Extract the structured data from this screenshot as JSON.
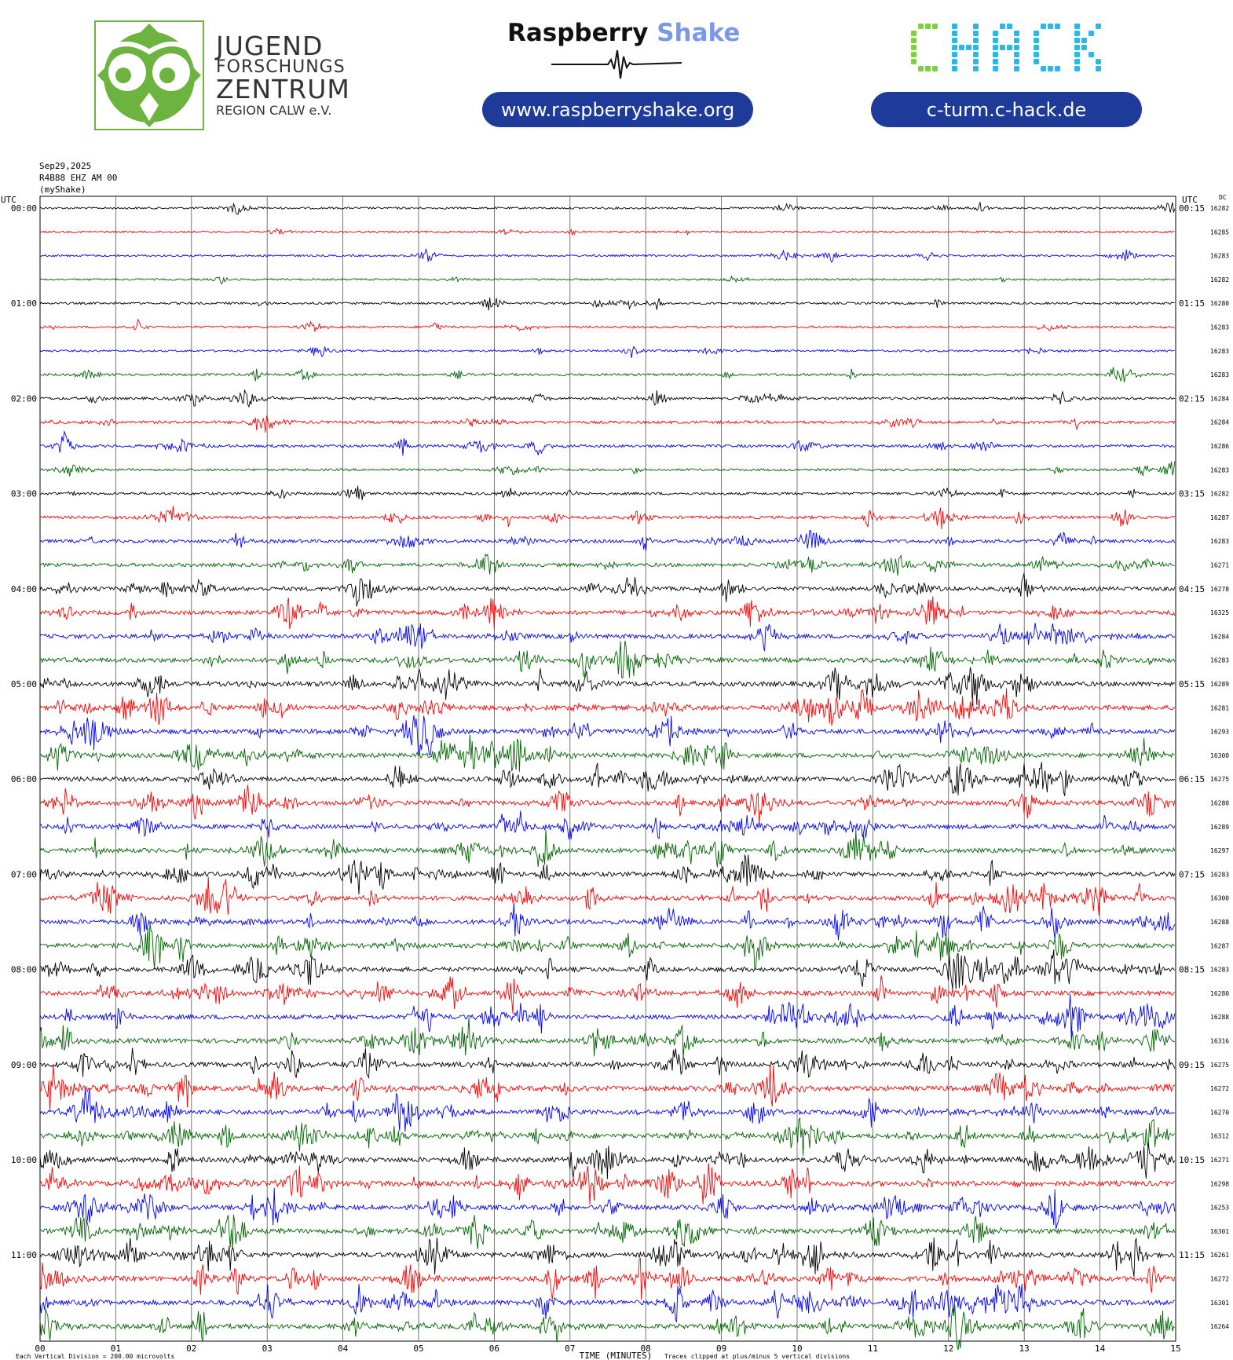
{
  "header": {
    "jfz": {
      "line1": "JUGEND",
      "line2": "FORSCHUNGS",
      "line3": "ZENTRUM",
      "line4": "REGION CALW e.V."
    },
    "raspberry_shake": {
      "word1": "Raspberry",
      "word2": "Shake",
      "url": "www.raspberryshake.org"
    },
    "chack": {
      "logo_text": "CHACK",
      "url": "c-turm.c-hack.de"
    },
    "colors": {
      "jfz_green": "#6db33f",
      "pill_blue": "#1f3b9a",
      "chack_green": "#7bd23a",
      "chack_cyan": "#2bb8e6",
      "shake_blue": "#7b97e8"
    }
  },
  "meta": {
    "date": "Sep29,2025",
    "station": "R4B88 EHZ AM 00",
    "network": "(myShake)"
  },
  "chart_data": {
    "type": "helicorder",
    "left_axis_title": "UTC",
    "right_axis_title": "UTC",
    "dc_title": "DC",
    "left_labels": [
      "00:00",
      "01:00",
      "02:00",
      "03:00",
      "04:00",
      "05:00",
      "06:00",
      "07:00",
      "08:00",
      "09:00",
      "10:00",
      "11:00"
    ],
    "right_labels": [
      "00:15",
      "01:15",
      "02:15",
      "03:15",
      "04:15",
      "05:15",
      "06:15",
      "07:15",
      "08:15",
      "09:15",
      "10:15",
      "11:15"
    ],
    "dc_values": [
      "16282",
      "16285",
      "16283",
      "16282",
      "16280",
      "16283",
      "16283",
      "16283",
      "16284",
      "16284",
      "16286",
      "16283",
      "16282",
      "16287",
      "16283",
      "16271",
      "16278",
      "16325",
      "16284",
      "16283",
      "16289",
      "16281",
      "16293",
      "16300",
      "16275",
      "16280",
      "16289",
      "16297",
      "16283",
      "16300",
      "16288",
      "16287",
      "16283",
      "16280",
      "16288",
      "16316",
      "16275",
      "16272",
      "16270",
      "16312",
      "16271",
      "16298",
      "16253",
      "16301",
      "16261",
      "16272",
      "16301",
      "16264"
    ],
    "trace_colors": [
      "#000000",
      "#ff0000",
      "#0000ff",
      "#006400"
    ],
    "trace_count": 48,
    "minutes_per_line": 15,
    "x_ticks": [
      "00",
      "01",
      "02",
      "03",
      "04",
      "05",
      "06",
      "07",
      "08",
      "09",
      "10",
      "11",
      "12",
      "13",
      "14",
      "15"
    ],
    "xlabel": "TIME (MINUTES)",
    "footer_left": "Each Vertical Division = 200.00 microvolts",
    "footer_right": "Traces clipped at plus/minus 5 vertical divisions",
    "activity": [
      0.2,
      0.15,
      0.2,
      0.15,
      0.25,
      0.25,
      0.2,
      0.3,
      0.35,
      0.4,
      0.4,
      0.3,
      0.35,
      0.45,
      0.55,
      0.6,
      0.7,
      0.75,
      0.8,
      0.85,
      0.9,
      0.9,
      0.9,
      0.85,
      0.85,
      0.85,
      0.85,
      0.85,
      0.85,
      0.85,
      0.85,
      0.85,
      0.85,
      0.85,
      0.85,
      0.85,
      0.9,
      0.95,
      0.9,
      0.9,
      0.95,
      1.0,
      0.9,
      0.9,
      0.95,
      0.95,
      0.95,
      0.95
    ]
  }
}
